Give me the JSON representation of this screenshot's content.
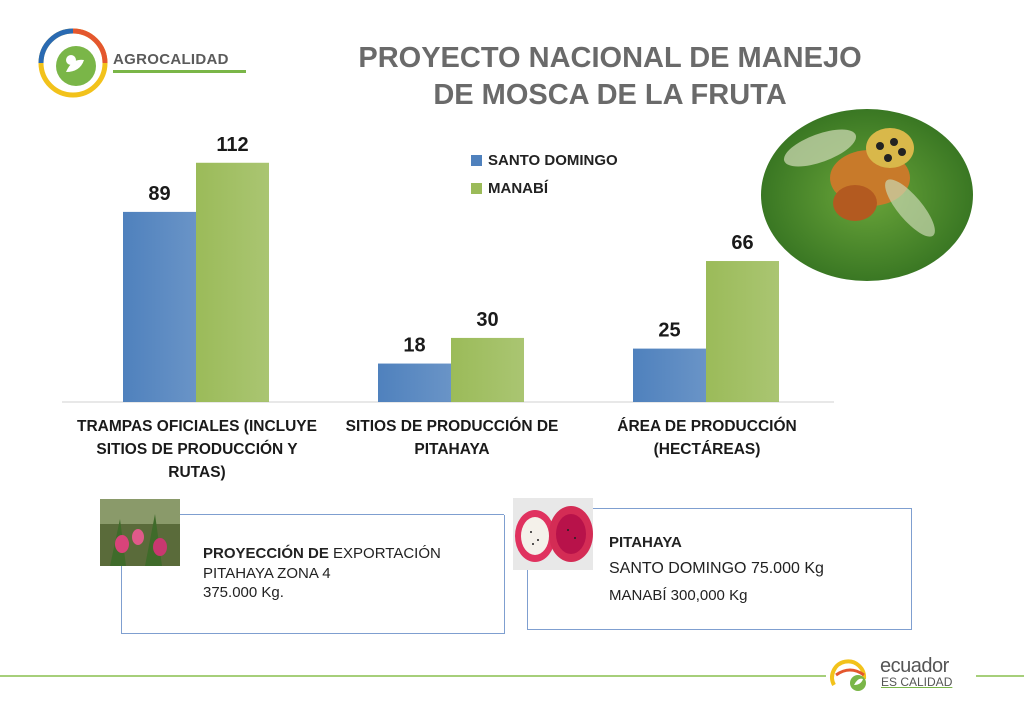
{
  "header": {
    "brand": "AGROCALIDAD",
    "title_line1": "PROYECTO  NACIONAL DE MANEJO",
    "title_line2": "DE MOSCA DE LA FRUTA"
  },
  "chart_data": {
    "type": "bar",
    "categories": [
      [
        "TRAMPAS OFICIALES (INCLUYE",
        "SITIOS DE PRODUCCIÓN Y",
        "RUTAS)"
      ],
      [
        "SITIOS DE PRODUCCIÓN DE",
        "PITAHAYA"
      ],
      [
        "ÁREA DE PRODUCCIÓN",
        "(HECTÁREAS)"
      ]
    ],
    "series": [
      {
        "name": "SANTO DOMINGO",
        "values": [
          89,
          18,
          25
        ],
        "color": "#4f81bd"
      },
      {
        "name": "MANABÍ",
        "values": [
          112,
          30,
          66
        ],
        "color": "#9bbb59"
      }
    ],
    "ylim": [
      0,
      125
    ],
    "legend": "top-right",
    "grid": false,
    "data_labels": true
  },
  "box1": {
    "line1_bold": "PROYECCIÓN DE",
    "line1_rest": " EXPORTACIÓN",
    "line2": "PITAHAYA ZONA 4",
    "line3": "375.000 Kg."
  },
  "box2": {
    "title": "PITAHAYA",
    "line1": "SANTO DOMINGO 75.000 Kg",
    "line2": "MANABÍ 300,000 Kg"
  },
  "footer": {
    "logo_word": "ecuador",
    "logo_sub": "ES CALIDAD"
  },
  "icons": [
    "agrocalidad-logo",
    "fruit-fly-photo",
    "pitahaya-plant-photo",
    "pitahaya-fruit-photo",
    "ecuador-es-calidad-logo"
  ]
}
